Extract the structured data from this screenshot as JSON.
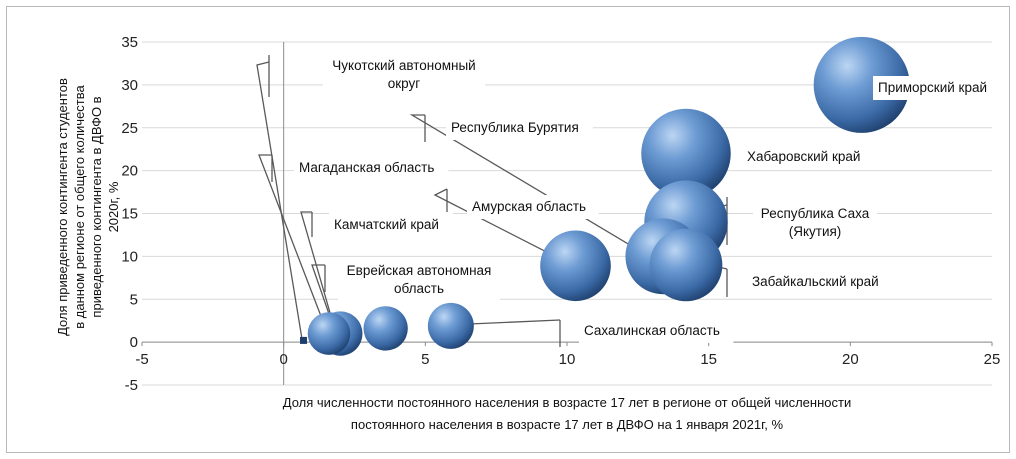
{
  "chart_data": {
    "type": "bubble",
    "xlabel": "Доля численности постоянного населения в возрасте 17 лет в регионе от общей численности постоянного населения в возрасте 17 лет в ДВФО на 1 января 2021г, %",
    "ylabel": "Доля приведенного контингента студентов в данном регионе от общего количества приведенного контингента в ДВФО в 2020г, %",
    "xlim": [
      -5,
      25
    ],
    "ylim": [
      -5,
      35
    ],
    "x_ticks": [
      "-5",
      "0",
      "5",
      "10",
      "15",
      "20",
      "25"
    ],
    "y_ticks": [
      "-5",
      "0",
      "5",
      "10",
      "15",
      "20",
      "25",
      "30",
      "35"
    ],
    "grid": "horizontal",
    "bubble_color": "#4f81bd",
    "points": [
      {
        "name": "Чукотский автономный округ",
        "x": 0.7,
        "y": 0.2,
        "size": 0.5
      },
      {
        "name": "Магаданская область",
        "x": 1.6,
        "y": 1.0,
        "size": 1.2
      },
      {
        "name": "Камчатский край",
        "x": 2.0,
        "y": 1.0,
        "size": 1.3
      },
      {
        "name": "Еврейская автономная область",
        "x": 3.6,
        "y": 1.6,
        "size": 1.3
      },
      {
        "name": "Сахалинская область",
        "x": 5.9,
        "y": 1.9,
        "size": 1.4
      },
      {
        "name": "Амурская область",
        "x": 10.3,
        "y": 8.9,
        "size": 3.3
      },
      {
        "name": "Забайкальский край",
        "x": 14.2,
        "y": 9.0,
        "size": 3.5
      },
      {
        "name": "Республика Бурятия",
        "x": 13.4,
        "y": 10.0,
        "size": 3.8
      },
      {
        "name": "Республика Саха (Якутия)",
        "x": 14.2,
        "y": 14.0,
        "size": 4.6
      },
      {
        "name": "Хабаровский край",
        "x": 14.2,
        "y": 22.0,
        "size": 5.3
      },
      {
        "name": "Приморский край",
        "x": 20.4,
        "y": 30.0,
        "size": 6.1
      }
    ]
  }
}
